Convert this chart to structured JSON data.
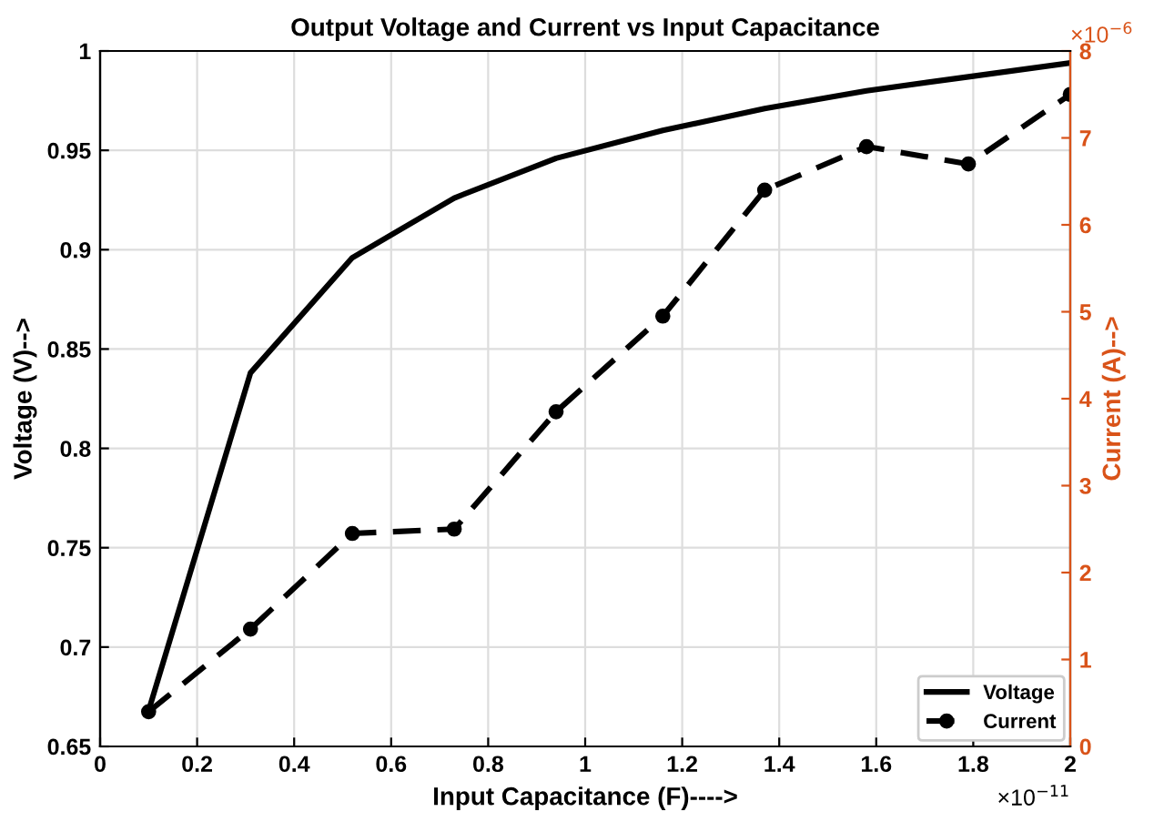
{
  "chart_data": {
    "type": "line",
    "title": "Output Voltage and Current vs Input Capacitance",
    "xlabel": "Input Capacitance (F)---->",
    "ylabel": "Voltage (V)-->",
    "y2label": "Current (A)-->",
    "x": [
      0.1,
      0.31,
      0.52,
      0.73,
      0.94,
      1.16,
      1.37,
      1.58,
      1.79,
      2.0
    ],
    "series": [
      {
        "name": "Voltage",
        "color": "#000000",
        "values": [
          0.668,
          0.838,
          0.896,
          0.926,
          0.946,
          0.96,
          0.971,
          0.98,
          0.987,
          0.994
        ],
        "line_style": "solid",
        "marker": "none"
      },
      {
        "name": "Current",
        "color": "#000000",
        "axis": "y2",
        "values": [
          0.4,
          1.35,
          2.45,
          2.5,
          3.85,
          4.95,
          6.4,
          6.9,
          6.7,
          7.5
        ],
        "line_style": "dashed",
        "marker": "circle"
      }
    ],
    "xlim": [
      0,
      2
    ],
    "xticks": [
      0,
      0.2,
      0.4,
      0.6,
      0.8,
      1,
      1.2,
      1.4,
      1.6,
      1.8,
      2
    ],
    "ylim": [
      0.65,
      1
    ],
    "yticks": [
      0.65,
      0.7,
      0.75,
      0.8,
      0.85,
      0.9,
      0.95,
      1
    ],
    "y2lim": [
      0,
      8
    ],
    "y2ticks": [
      0,
      1,
      2,
      3,
      4,
      5,
      6,
      7,
      8
    ],
    "annotations": [
      "×10$^{−11}$",
      "×10$^{−6}$"
    ],
    "grid": true,
    "legend": "bottom right"
  }
}
